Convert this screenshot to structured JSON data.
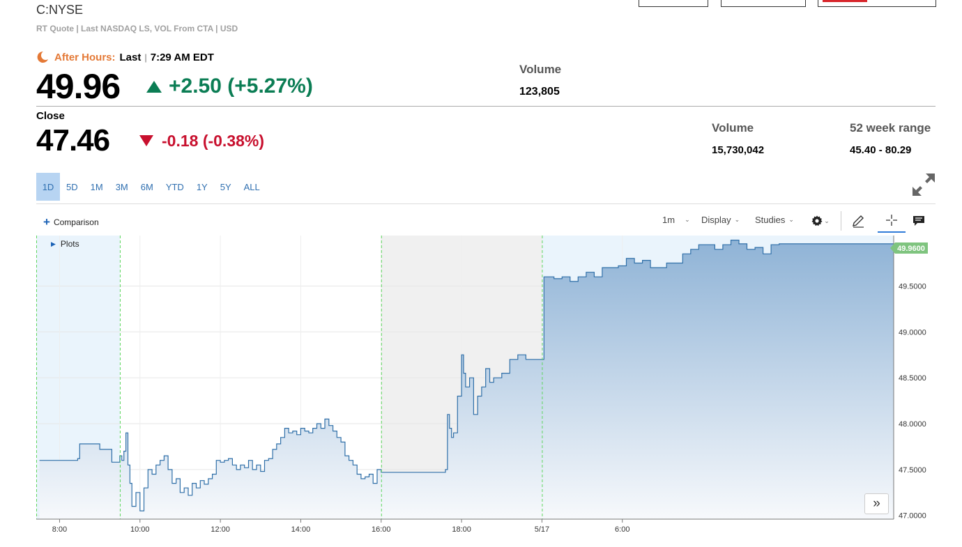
{
  "header": {
    "symbol": "C:NYSE",
    "quote_info": "RT Quote | Last NASDAQ LS, VOL From CTA | USD"
  },
  "after_hours": {
    "label": "After Hours:",
    "last_label": "Last",
    "separator": "|",
    "time": "7:29 AM EDT",
    "price": "49.96",
    "change": "+2.50 (+5.27%)",
    "volume_label": "Volume",
    "volume": "123,805"
  },
  "close": {
    "label": "Close",
    "price": "47.46",
    "change": "-0.18 (-0.38%)",
    "volume_label": "Volume",
    "volume": "15,730,042",
    "range_label": "52 week range",
    "range": "45.40 - 80.29"
  },
  "range_tabs": [
    "1D",
    "5D",
    "1M",
    "3M",
    "6M",
    "YTD",
    "1Y",
    "5Y",
    "ALL"
  ],
  "range_tab_active": "1D",
  "toolbar": {
    "comparison": "Comparison",
    "interval": "1m",
    "display": "Display",
    "studies": "Studies",
    "plots": "Plots"
  },
  "icons": [
    "moon-icon",
    "expand-icon",
    "gear-icon",
    "pencil-icon",
    "crosshair-icon",
    "comment-icon",
    "double-chevron-right-icon"
  ],
  "colors": {
    "up": "#0b7d54",
    "down": "#c8102e",
    "after_hours": "#e47936",
    "line": "#2f6fa8",
    "price_badge": "#7fc47f"
  },
  "chart_data": {
    "type": "area",
    "y_ticks": [
      "49.5000",
      "49.0000",
      "48.5000",
      "48.0000",
      "47.5000",
      "47.0000"
    ],
    "ylim": [
      46.96,
      50.05
    ],
    "x_ticks": [
      "8:00",
      "10:00",
      "12:00",
      "14:00",
      "16:00",
      "18:00",
      "5/17",
      "6:00"
    ],
    "current_price_label": "49.9600",
    "sessions": [
      "pre-market",
      "regular",
      "after-hours",
      "overnight"
    ],
    "series": [
      {
        "x_hours": [
          7.5,
          8.0,
          8.45,
          8.5,
          9.0,
          9.3,
          9.48,
          9.5,
          9.55,
          9.6,
          9.65,
          9.7,
          9.75,
          9.8,
          9.9,
          10.0,
          10.1,
          10.2,
          10.3,
          10.4,
          10.5,
          10.6,
          10.7,
          10.8,
          10.9,
          11.0,
          11.1,
          11.2,
          11.3,
          11.4,
          11.5,
          11.6,
          11.7,
          11.8,
          11.9,
          12.0,
          12.1,
          12.2,
          12.3,
          12.4,
          12.5,
          12.6,
          12.7,
          12.8,
          12.9,
          13.0,
          13.1,
          13.2,
          13.3,
          13.4,
          13.5,
          13.6,
          13.7,
          13.8,
          13.9,
          14.0,
          14.1,
          14.2,
          14.3,
          14.4,
          14.5,
          14.6,
          14.7,
          14.8,
          14.9,
          15.0,
          15.1,
          15.2,
          15.3,
          15.4,
          15.5,
          15.6,
          15.7,
          15.8,
          15.9,
          16.0,
          16.5,
          17.0,
          17.5,
          17.6,
          17.65,
          17.7,
          17.75,
          17.8,
          17.9,
          18.0,
          18.05,
          18.1,
          18.2,
          18.3,
          18.4,
          18.5,
          18.6,
          18.7,
          18.8,
          18.9,
          19.0,
          19.2,
          19.4,
          19.6,
          19.8,
          20.0,
          20.05,
          20.1,
          20.3,
          20.5,
          20.7,
          20.9,
          21.1,
          21.3,
          21.5,
          21.7,
          21.9,
          22.1,
          22.3,
          22.5,
          22.7,
          22.9,
          23.1,
          23.3,
          23.5,
          23.7,
          23.9,
          24.1,
          24.3,
          24.5,
          24.7,
          24.9,
          25.1,
          25.3,
          25.5,
          25.7,
          25.9,
          26.1,
          26.3,
          26.5,
          26.7,
          26.9,
          27.1,
          27.3,
          27.5,
          27.7,
          27.9,
          28.1,
          28.3,
          28.5,
          28.6,
          28.75
        ],
        "values": [
          47.6,
          47.6,
          47.62,
          47.78,
          47.72,
          47.58,
          47.58,
          47.65,
          47.6,
          47.7,
          47.9,
          47.55,
          47.35,
          47.1,
          47.25,
          47.05,
          47.3,
          47.5,
          47.45,
          47.55,
          47.6,
          47.65,
          47.5,
          47.35,
          47.4,
          47.25,
          47.3,
          47.22,
          47.35,
          47.3,
          47.38,
          47.34,
          47.4,
          47.45,
          47.6,
          47.58,
          47.6,
          47.62,
          47.55,
          47.5,
          47.55,
          47.52,
          47.6,
          47.5,
          47.55,
          47.48,
          47.6,
          47.62,
          47.72,
          47.78,
          47.85,
          47.95,
          47.9,
          47.92,
          47.88,
          47.95,
          47.92,
          47.9,
          47.95,
          48.0,
          47.95,
          48.05,
          47.98,
          47.92,
          47.85,
          47.8,
          47.65,
          47.6,
          47.55,
          47.45,
          47.4,
          47.42,
          47.45,
          47.35,
          47.5,
          47.47,
          47.47,
          47.47,
          47.47,
          47.5,
          48.1,
          47.95,
          47.85,
          47.9,
          48.3,
          48.75,
          48.55,
          48.4,
          48.5,
          48.1,
          48.3,
          48.4,
          48.6,
          48.45,
          48.5,
          48.5,
          48.55,
          48.7,
          48.75,
          48.7,
          48.7,
          48.7,
          49.6,
          49.6,
          49.58,
          49.6,
          49.55,
          49.6,
          49.65,
          49.6,
          49.7,
          49.7,
          49.72,
          49.8,
          49.75,
          49.78,
          49.7,
          49.7,
          49.75,
          49.75,
          49.85,
          49.9,
          49.95,
          49.95,
          49.9,
          49.95,
          50.0,
          49.96,
          49.9,
          49.92,
          49.85,
          49.95,
          49.96,
          49.96,
          49.96,
          49.96,
          49.96,
          49.96,
          49.96,
          49.96,
          49.96,
          49.96,
          49.96,
          49.96,
          49.96,
          49.96,
          49.96,
          49.96
        ]
      }
    ]
  }
}
